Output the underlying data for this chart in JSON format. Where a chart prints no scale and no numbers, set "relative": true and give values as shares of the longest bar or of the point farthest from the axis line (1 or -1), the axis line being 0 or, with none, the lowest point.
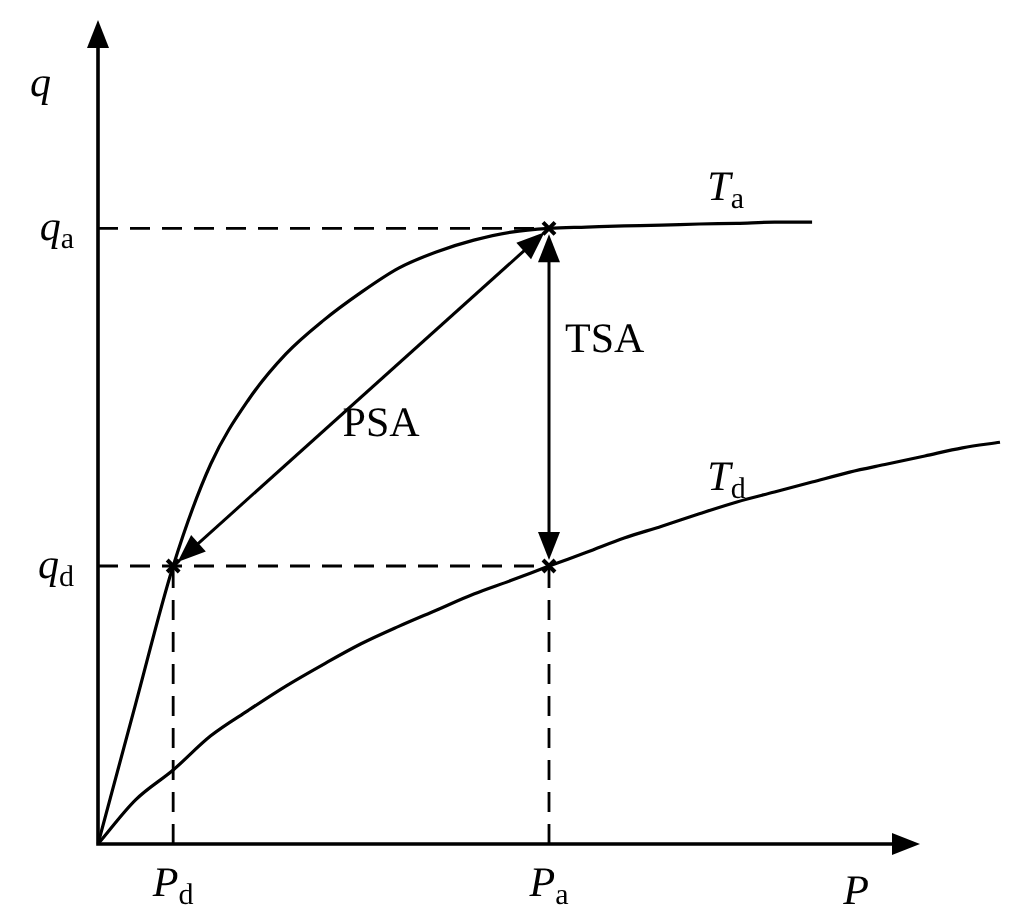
{
  "chart_data": {
    "type": "line",
    "relative": true,
    "xlabel": "P",
    "ylabel": "q",
    "categories": [
      null,
      null,
      "P$_{d}$",
      null,
      null,
      null,
      null,
      null,
      null,
      null,
      null,
      null,
      "P$_{a}$",
      null,
      null,
      null,
      null,
      null,
      null,
      null,
      null,
      null,
      null,
      null,
      null
    ],
    "series": [
      {
        "name": "T$_{a}$",
        "color": "#000000",
        "values": [
          0,
          0.225,
          0.447,
          0.611,
          0.714,
          0.788,
          0.842,
          0.887,
          0.926,
          0.952,
          0.971,
          0.984,
          0.99,
          0.992,
          0.994,
          0.995,
          0.997,
          0.998,
          1,
          1,
          null,
          null,
          null,
          null,
          null
        ]
      },
      {
        "name": "T$_{d}$",
        "color": "#000000",
        "values": [
          0,
          0.071,
          0.119,
          0.174,
          0.215,
          0.254,
          0.289,
          0.322,
          0.35,
          0.376,
          0.402,
          0.424,
          0.447,
          0.469,
          0.492,
          0.511,
          0.531,
          0.55,
          0.566,
          0.582,
          0.598,
          0.611,
          0.624,
          0.637,
          0.646
        ]
      }
    ],
    "ref_lines": [
      {
        "axis": "y",
        "value": 0.99,
        "label": "q$_{a}$",
        "line_style": "dashed"
      },
      {
        "axis": "y",
        "value": 0.447,
        "label": "q$_{d}$",
        "line_style": "dashed"
      },
      {
        "axis": "x",
        "value": "P$_{d}$",
        "line_style": "dashed"
      },
      {
        "axis": "x",
        "value": "P$_{a}$",
        "line_style": "dashed"
      }
    ],
    "annotations": [
      "PSA",
      "TSA"
    ]
  }
}
